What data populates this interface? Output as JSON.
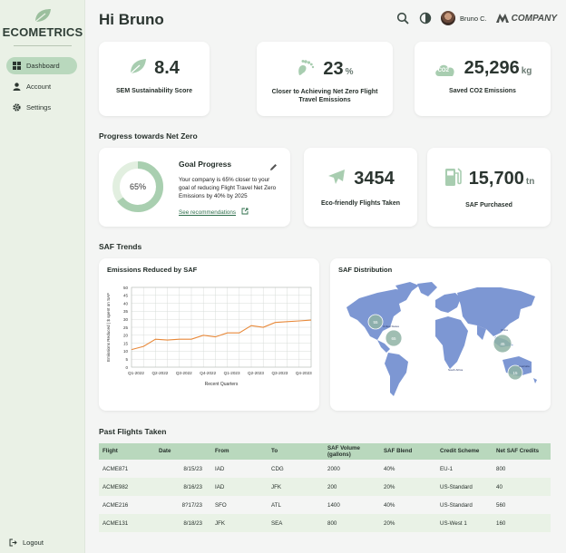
{
  "app": {
    "brand": "ECOMETRICS"
  },
  "sidebar": {
    "items": [
      {
        "label": "Dashboard",
        "icon": "dashboard-icon",
        "active": true
      },
      {
        "label": "Account",
        "icon": "user-icon",
        "active": false
      },
      {
        "label": "Settings",
        "icon": "gear-icon",
        "active": false
      }
    ],
    "logout_label": "Logout"
  },
  "header": {
    "greeting": "Hi Bruno",
    "user_name": "Bruno C.",
    "company": "COMPANY"
  },
  "kpis": [
    {
      "value": "8.4",
      "unit": "",
      "label": "SEM Sustainability Score",
      "icon": "leaf-icon"
    },
    {
      "value": "23",
      "unit": "%",
      "label": "Closer to Achieving Net Zero Flight Travel Emissions",
      "icon": "footprint-icon"
    },
    {
      "value": "25,296",
      "unit": "kg",
      "label": "Saved CO2 Emissions",
      "icon": "co2-cloud-icon",
      "icon_text": "CO2"
    }
  ],
  "progress": {
    "section_title": "Progress towards Net Zero",
    "goal": {
      "title": "Goal Progress",
      "percent": 65,
      "percent_label": "65%",
      "text": "Your company is 65% closer to your goal of reducing Flight Travel Net Zero Emissions by 40% by 2025",
      "link": "See recommendations"
    },
    "flights": {
      "value": "3454",
      "label": "Eco-friendly Flights Taken",
      "icon": "airplane-icon"
    },
    "saf": {
      "value": "15,700",
      "unit": "tn",
      "label": "SAF Purchased",
      "icon": "fuel-pump-icon"
    }
  },
  "trends": {
    "section_title": "SAF Trends",
    "line_chart_title": "Emissions Reduced by SAF",
    "map_title": "SAF Distribution",
    "map_clusters": [
      {
        "value": "55"
      },
      {
        "value": "65"
      },
      {
        "value": "45"
      },
      {
        "value": "15"
      }
    ],
    "map_labels": [
      "United States",
      "South Africa",
      "Australia",
      "China"
    ]
  },
  "chart_data": {
    "type": "line",
    "title": "Emissions Reduced by SAF",
    "xlabel": "Recent Quarters",
    "ylabel": "Emissions Reduced | $ spent on SAF",
    "categories": [
      "Q1-2022",
      "Q2-2022",
      "Q3-2022",
      "Q4-2022",
      "Q1-2023",
      "Q2-2023",
      "Q3-2023",
      "Q4-2023"
    ],
    "x": [
      0,
      0.5,
      1,
      1.5,
      2,
      2.5,
      3,
      3.5,
      4,
      4.5,
      5,
      5.5,
      6,
      6.5,
      7,
      7.5
    ],
    "values": [
      11,
      13,
      17.5,
      17,
      17.5,
      17.5,
      20,
      19,
      21.5,
      21.5,
      26,
      25,
      28,
      28.5,
      29,
      29.5
    ],
    "ylim": [
      0,
      50
    ],
    "yticks": [
      0,
      5,
      10,
      15,
      20,
      25,
      30,
      35,
      40,
      45,
      50
    ],
    "grid": true,
    "line_color": "#e8893a"
  },
  "flights_table": {
    "section_title": "Past Flights Taken",
    "columns": [
      "Flight",
      "Date",
      "From",
      "To",
      "SAF Volume (gallons)",
      "SAF Blend",
      "Credit Scheme",
      "Net SAF Credits"
    ],
    "rows": [
      [
        "ACME871",
        "8/15/23",
        "IAD",
        "CDG",
        "2000",
        "40%",
        "EU-1",
        "800"
      ],
      [
        "ACME982",
        "8/16/23",
        "IAD",
        "JFK",
        "200",
        "20%",
        "US-Standard",
        "40"
      ],
      [
        "ACME216",
        "8?17/23",
        "SFO",
        "ATL",
        "1400",
        "40%",
        "US-Standard",
        "560"
      ],
      [
        "ACME131",
        "8/18/23",
        "JFK",
        "SEA",
        "800",
        "20%",
        "US-West 1",
        "160"
      ]
    ]
  },
  "colors": {
    "accent": "#b9d8bd",
    "sidebar_bg": "#eaf1e6",
    "map_land": "#7d97d3",
    "cluster": "#8fb3a5",
    "line": "#e8893a"
  }
}
